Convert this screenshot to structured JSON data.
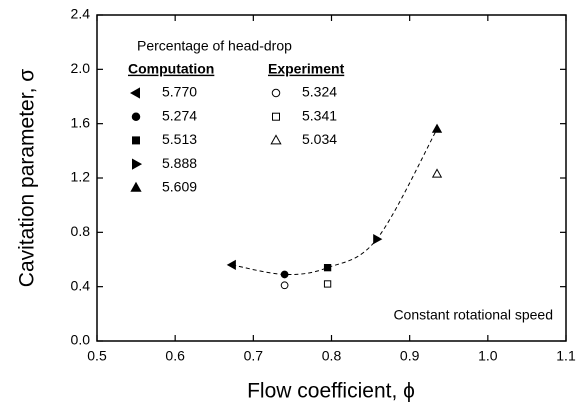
{
  "chart_data": {
    "type": "scatter",
    "xlabel": "Flow coefficient, ϕ",
    "ylabel": "Cavitation parameter, σ",
    "legend_title": "Percentage of head-drop",
    "annotation": "Constant rotational speed",
    "xlim": [
      0.5,
      1.1
    ],
    "xticks": [
      {
        "value": 0.5,
        "label": "0.5"
      },
      {
        "value": 0.6,
        "label": "0.6"
      },
      {
        "value": 0.7,
        "label": "0.7"
      },
      {
        "value": 0.8,
        "label": "0.8"
      },
      {
        "value": 0.9,
        "label": "0.9"
      },
      {
        "value": 1.0,
        "label": "1.0"
      },
      {
        "value": 1.1,
        "label": "1.1"
      }
    ],
    "ylim": [
      0,
      2.4
    ],
    "yticks": [
      {
        "value": 0,
        "label": "0.0"
      },
      {
        "value": 0.4,
        "label": "0.4"
      },
      {
        "value": 0.8,
        "label": "0.8"
      },
      {
        "value": 1.2,
        "label": "1.2"
      },
      {
        "value": 1.6,
        "label": "1.6"
      },
      {
        "value": 2.0,
        "label": "2.0"
      },
      {
        "value": 2.4,
        "label": "2.4"
      }
    ],
    "color": "#000000",
    "fit_line": true,
    "groups": [
      {
        "name": "Computation",
        "filled": true,
        "series": [
          {
            "name": "5.770",
            "marker": "triangle-left",
            "x": [
              0.673
            ],
            "values": [
              0.56
            ]
          },
          {
            "name": "5.274",
            "marker": "circle",
            "x": [
              0.74
            ],
            "values": [
              0.49
            ]
          },
          {
            "name": "5.513",
            "marker": "square",
            "x": [
              0.795
            ],
            "values": [
              0.54
            ]
          },
          {
            "name": "5.888",
            "marker": "triangle-right",
            "x": [
              0.858
            ],
            "values": [
              0.75
            ]
          },
          {
            "name": "5.609",
            "marker": "triangle-up",
            "x": [
              0.935
            ],
            "values": [
              1.56
            ]
          }
        ]
      },
      {
        "name": "Experiment",
        "filled": false,
        "series": [
          {
            "name": "5.324",
            "marker": "circle",
            "x": [
              0.74
            ],
            "values": [
              0.41
            ]
          },
          {
            "name": "5.341",
            "marker": "square",
            "x": [
              0.795
            ],
            "values": [
              0.42
            ]
          },
          {
            "name": "5.034",
            "marker": "triangle-up",
            "x": [
              0.935
            ],
            "values": [
              1.23
            ]
          }
        ]
      }
    ]
  }
}
